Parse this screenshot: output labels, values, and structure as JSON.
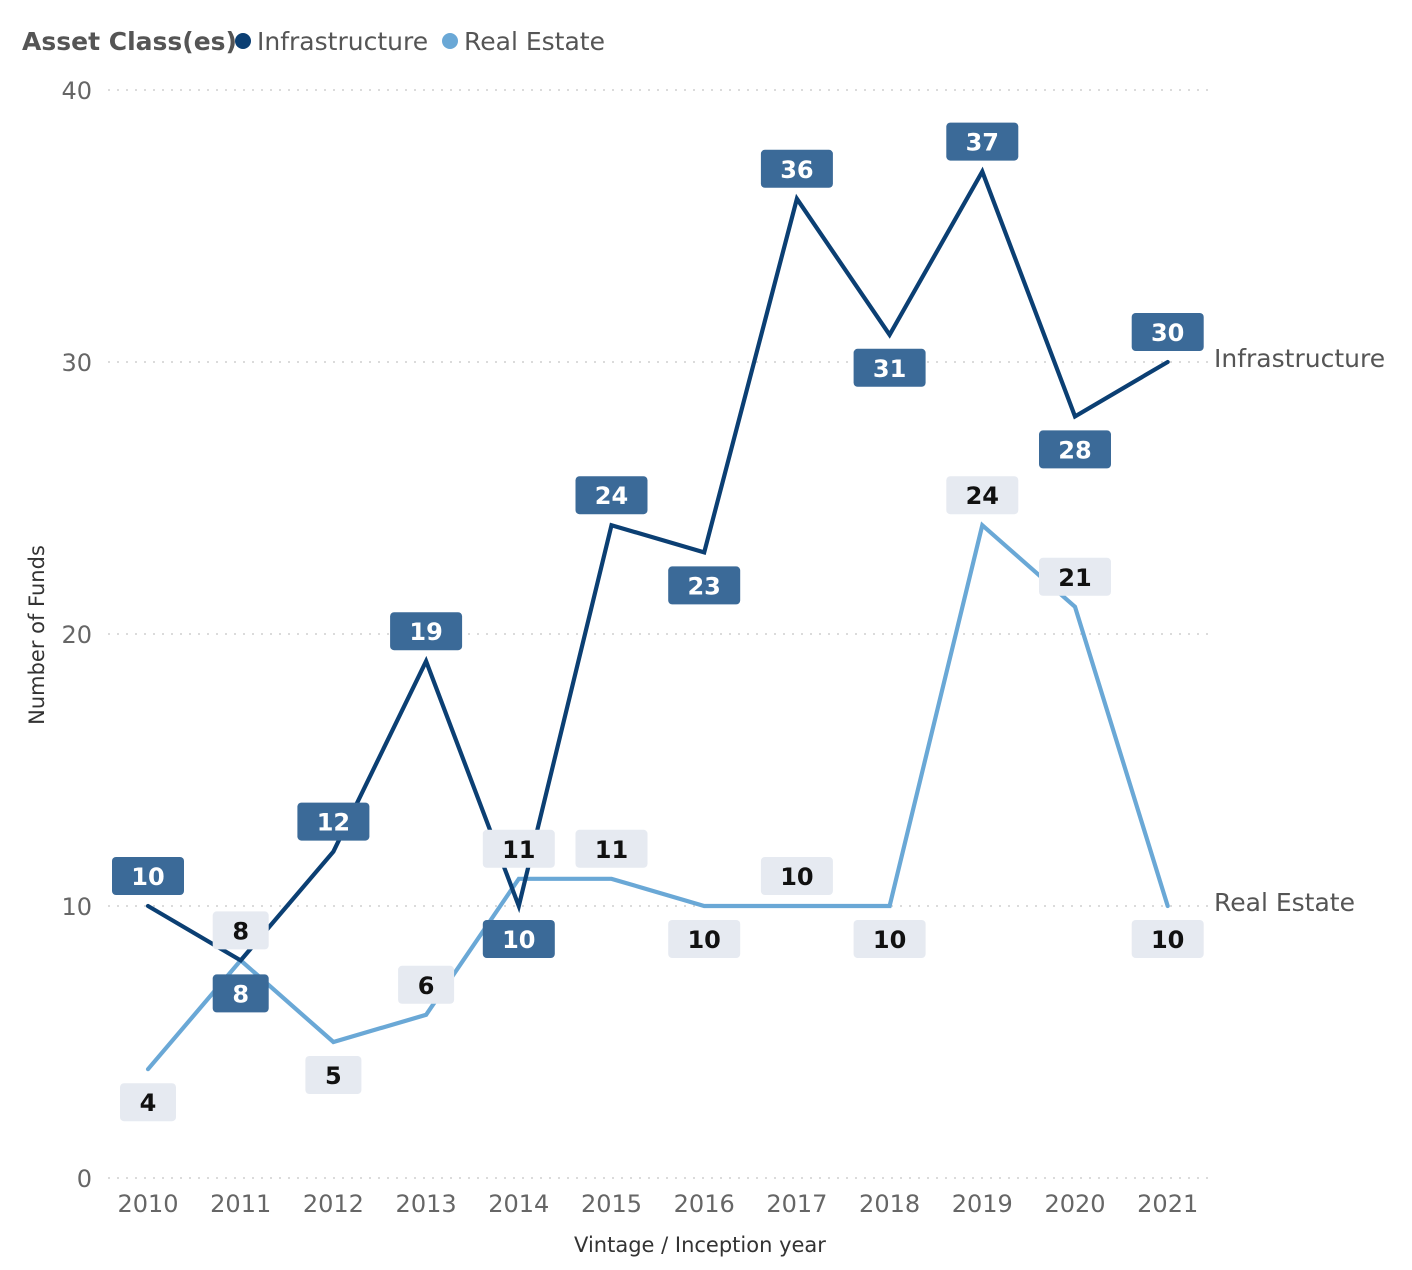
{
  "legend": {
    "title": "Asset Class(es)",
    "items": [
      {
        "label": "Infrastructure",
        "color": "#0b3f73"
      },
      {
        "label": "Real Estate",
        "color": "#6aa8d6"
      }
    ]
  },
  "colors": {
    "infrastructure_line": "#0b3f73",
    "infrastructure_label_bg": "#3b6a98",
    "real_estate_line": "#6aa8d6",
    "real_estate_label_bg": "#e6eaf1",
    "gridline": "#cfcfcf"
  },
  "chart_data": {
    "type": "line",
    "title": "",
    "xlabel": "Vintage / Inception year",
    "ylabel": "Number of Funds",
    "x": [
      "2010",
      "2011",
      "2012",
      "2013",
      "2014",
      "2015",
      "2016",
      "2017",
      "2018",
      "2019",
      "2020",
      "2021"
    ],
    "ylim": [
      0,
      40
    ],
    "yticks": [
      0,
      10,
      20,
      30,
      40
    ],
    "grid": true,
    "legend_position": "top-left",
    "series": [
      {
        "name": "Infrastructure",
        "values": [
          10,
          8,
          12,
          19,
          10,
          24,
          23,
          36,
          31,
          37,
          28,
          30
        ],
        "data_labels": [
          "10",
          "8",
          "12",
          "19",
          "10",
          "24",
          "23",
          "36",
          "31",
          "37",
          "28",
          "30"
        ],
        "end_label": "Infrastructure"
      },
      {
        "name": "Real Estate",
        "values": [
          4,
          8,
          5,
          6,
          11,
          11,
          10,
          10,
          10,
          24,
          21,
          10
        ],
        "data_labels": [
          "4",
          "8",
          "5",
          "6",
          "11",
          "11",
          "10",
          "10",
          "10",
          "24",
          "21",
          "10"
        ],
        "end_label": "Real Estate"
      }
    ]
  }
}
